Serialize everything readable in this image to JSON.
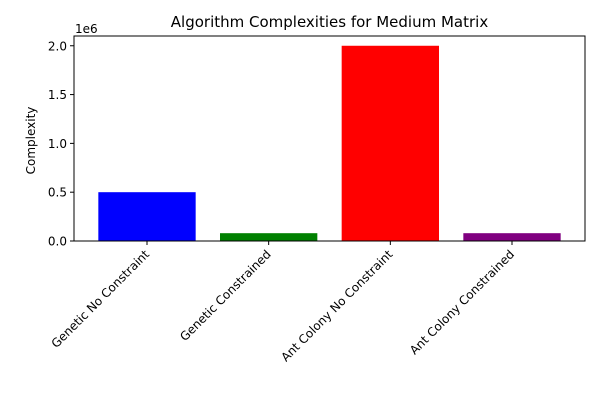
{
  "chart_data": {
    "type": "bar",
    "title": "Algorithm Complexities for Medium Matrix",
    "xlabel": "",
    "ylabel": "Complexity",
    "offset_text": "1e6",
    "categories": [
      "Genetic No Constraint",
      "Genetic Constrained",
      "Ant Colony No Constraint",
      "Ant Colony Constrained"
    ],
    "values": [
      500000,
      80000,
      2000000,
      80000
    ],
    "colors": [
      "#0000ff",
      "#008000",
      "#ff0000",
      "#800080"
    ],
    "ylim": [
      0,
      2100000
    ],
    "yticks": [
      0,
      500000,
      1000000,
      1500000,
      2000000
    ],
    "ytick_labels": [
      "0.0",
      "0.5",
      "1.0",
      "1.5",
      "2.0"
    ],
    "grid": false,
    "xtick_rotation_deg": 45
  }
}
